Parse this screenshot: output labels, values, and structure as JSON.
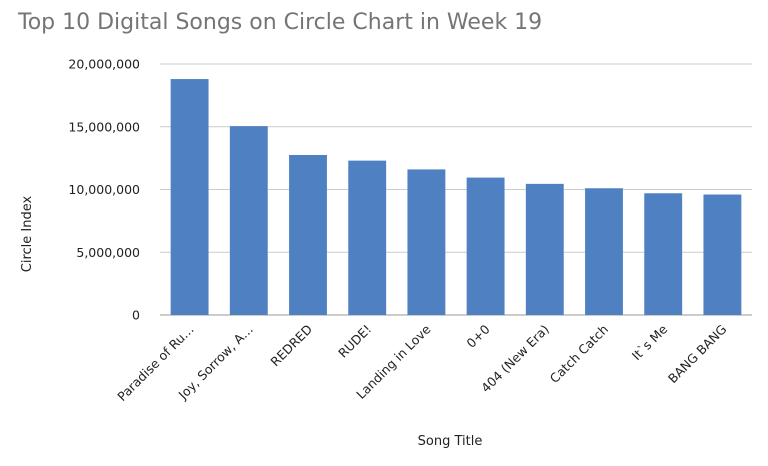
{
  "chart_data": {
    "type": "bar",
    "title": "Top 10 Digital Songs on Circle Chart in Week 19",
    "xlabel": "Song Title",
    "ylabel": "Circle Index",
    "categories": [
      "Paradise of Ru…",
      "Joy, Sorrow, A…",
      "REDRED",
      "RUDE!",
      "Landing in Love",
      "0+0",
      "404 (New Era)",
      "Catch Catch",
      "It`s Me",
      "BANG BANG"
    ],
    "values": [
      18800000,
      15050000,
      12750000,
      12300000,
      11600000,
      10950000,
      10450000,
      10100000,
      9700000,
      9600000
    ],
    "yticks": [
      "0",
      "5,000,000",
      "10,000,000",
      "15,000,000",
      "20,000,000"
    ],
    "ylim": [
      0,
      20000000
    ],
    "grid": true,
    "legend": "none",
    "bar_color": "#4f81c2",
    "grid_color": "#cccccc"
  }
}
